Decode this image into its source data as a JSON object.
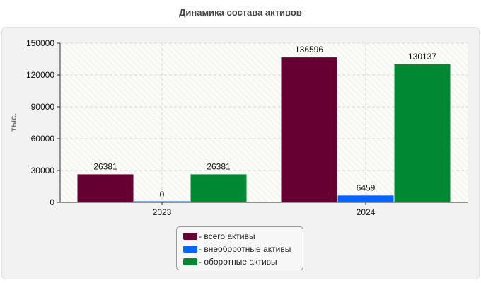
{
  "chart_data": {
    "type": "bar",
    "title": "Динамика состава активов",
    "ylabel": "тыс.",
    "xlabel": "",
    "categories": [
      "2023",
      "2024"
    ],
    "series": [
      {
        "name": "всего активы",
        "values": [
          26381,
          136596
        ],
        "color": "#660033"
      },
      {
        "name": "внеоборотные активы",
        "values": [
          0,
          6459
        ],
        "color": "#0066ff"
      },
      {
        "name": "оборотные активы",
        "values": [
          26381,
          130137
        ],
        "color": "#008833"
      }
    ],
    "ylim": [
      0,
      150000
    ],
    "yticks": [
      0,
      30000,
      60000,
      90000,
      120000,
      150000
    ],
    "grid": true,
    "legend_position": "bottom"
  },
  "legend": {
    "prefix": "- "
  }
}
